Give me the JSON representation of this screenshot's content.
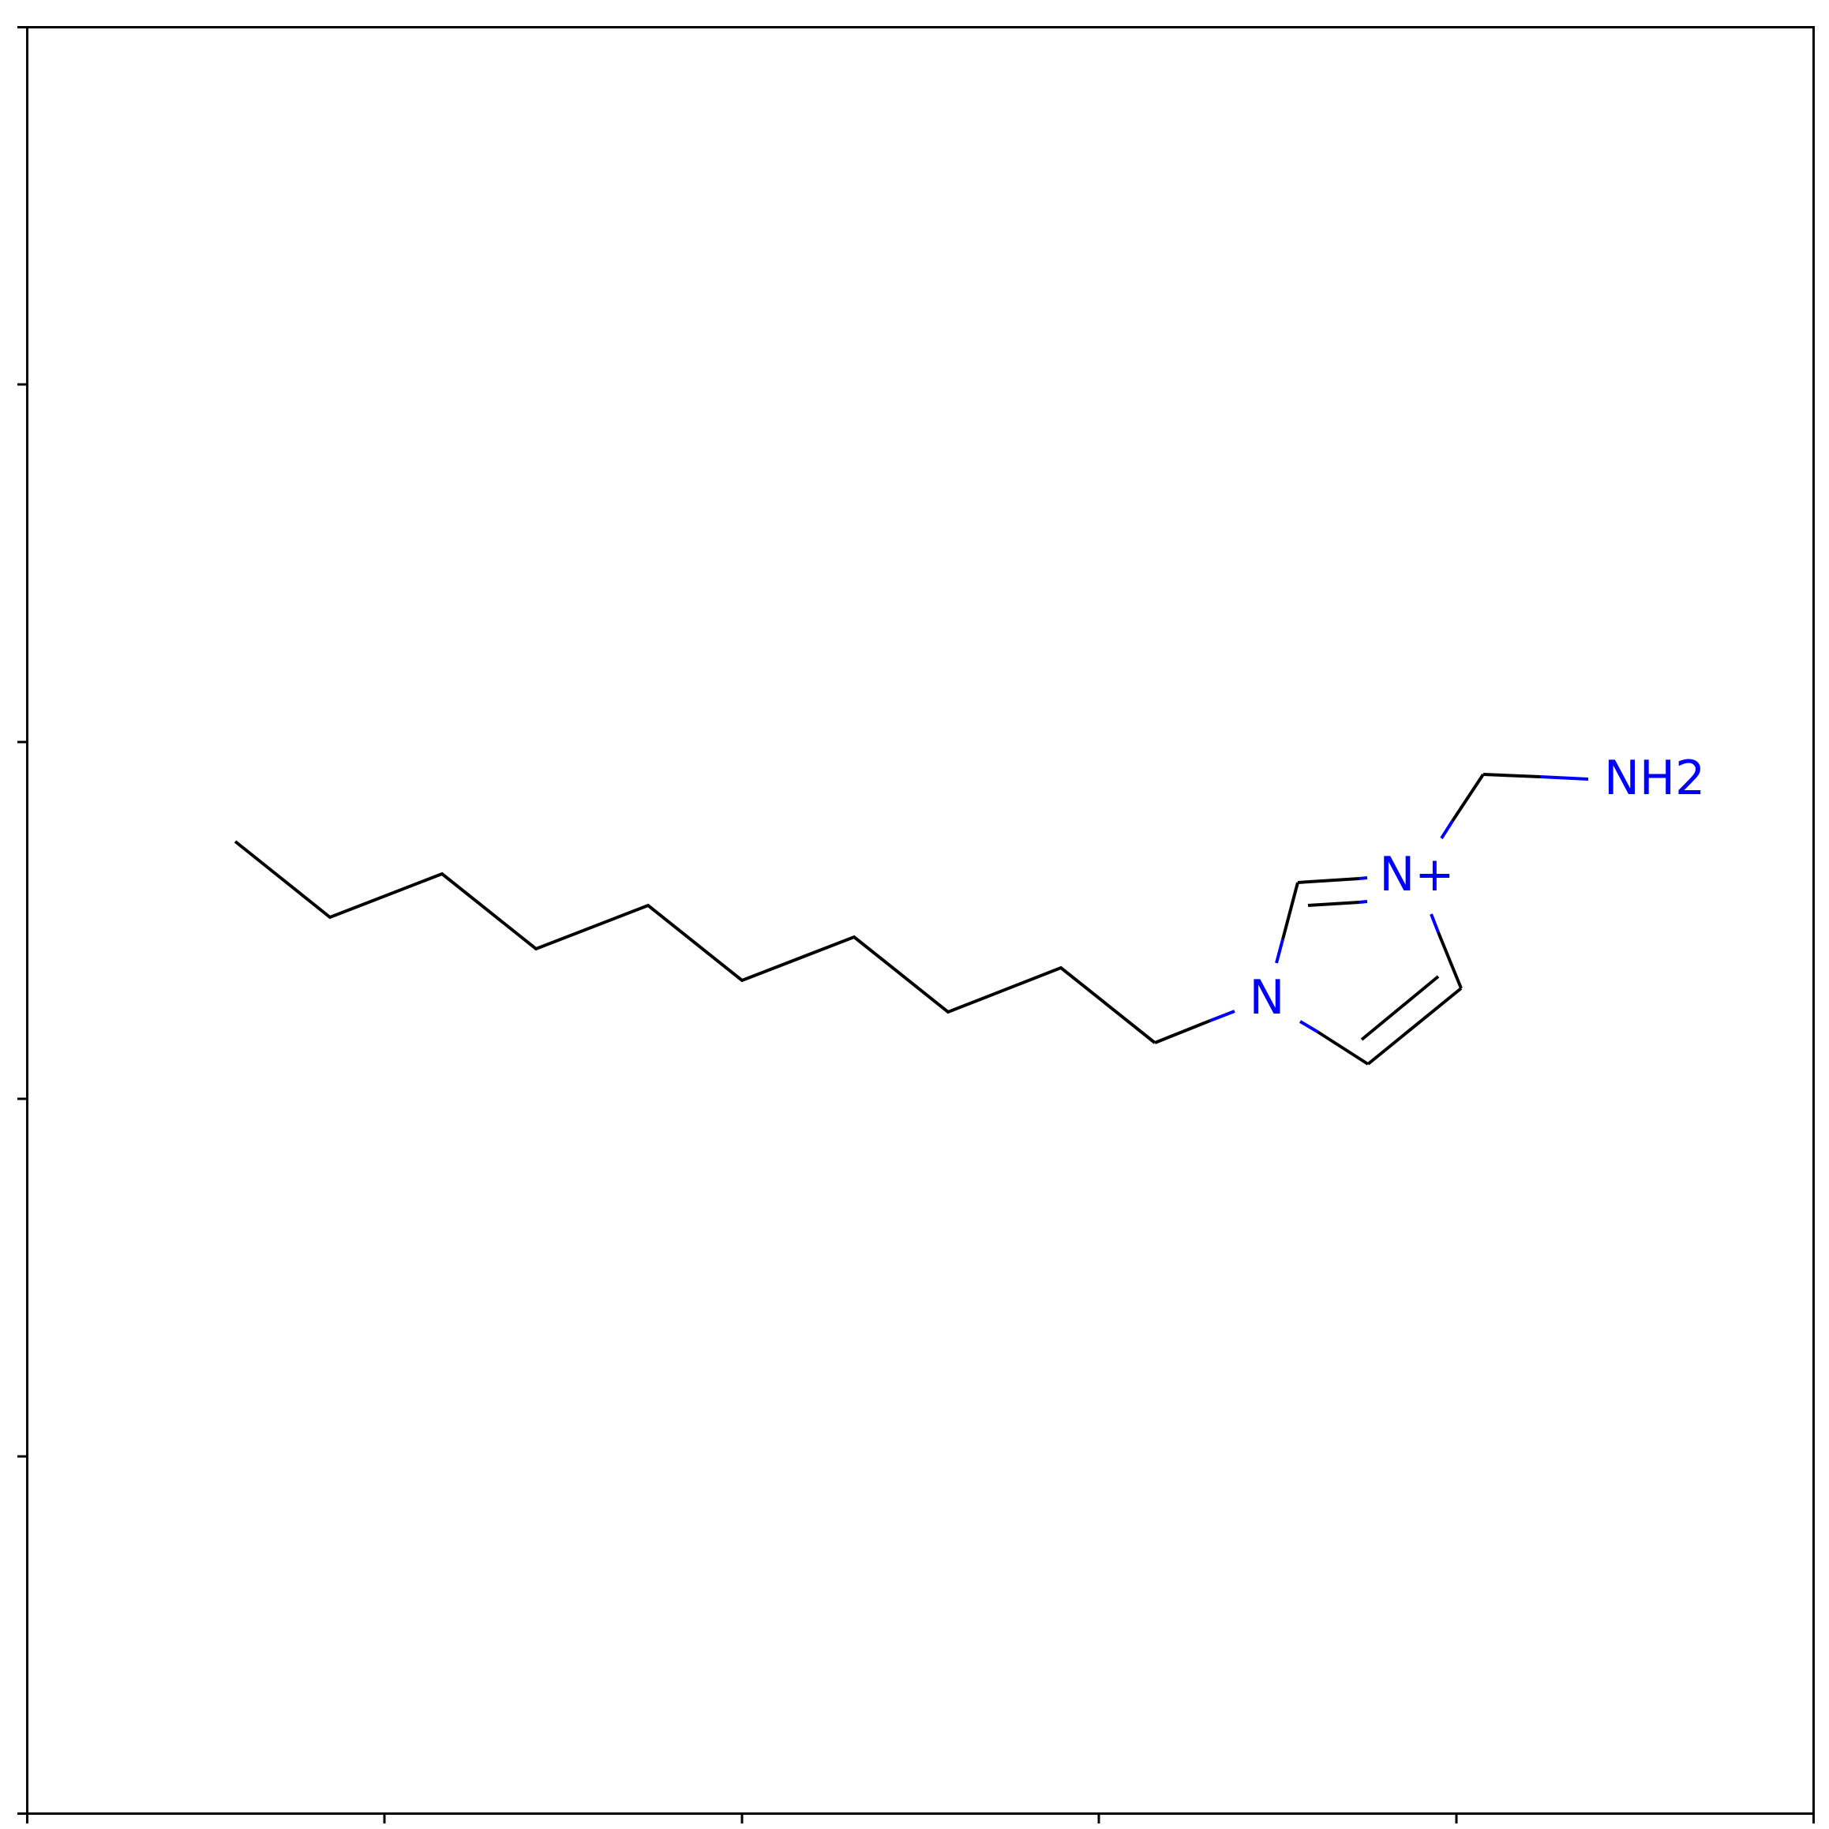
{
  "colors": {
    "carbon": "#000000",
    "nitrogen": "#0000ff",
    "background": "#ffffff",
    "frame": "#000000"
  },
  "atom_labels": {
    "ring_nitrogen": "N",
    "cationic_nitrogen": "N+",
    "amine": "NH2"
  }
}
